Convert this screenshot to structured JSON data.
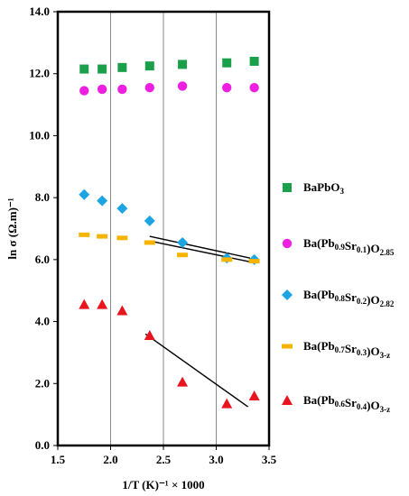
{
  "chart_data": {
    "type": "scatter",
    "xlabel": "1/T (K)⁻¹ × 1000",
    "ylabel": "ln σ (Ω.m)⁻¹",
    "xlim": [
      1.5,
      3.5
    ],
    "ylim": [
      0.0,
      14.0
    ],
    "x_ticks": [
      "1.5",
      "2.0",
      "2.5",
      "3.0",
      "3.5"
    ],
    "y_ticks": [
      "0.0",
      "2.0",
      "4.0",
      "6.0",
      "8.0",
      "10.0",
      "12.0",
      "14.0"
    ],
    "grid": "vertical",
    "legend_position": "right",
    "series": [
      {
        "name": "BaPbO3",
        "label_parts": [
          [
            "BaPbO",
            ""
          ],
          [
            "3",
            "sub"
          ]
        ],
        "marker": "square",
        "color": "#1aa04a",
        "x": [
          1.75,
          1.92,
          2.11,
          2.37,
          2.68,
          3.1,
          3.36
        ],
        "y": [
          12.15,
          12.15,
          12.2,
          12.25,
          12.3,
          12.35,
          12.4
        ]
      },
      {
        "name": "Ba(Pb0.9Sr0.1)O2.85",
        "label_parts": [
          [
            "Ba(Pb",
            ""
          ],
          [
            "0.9",
            "sub"
          ],
          [
            "Sr",
            ""
          ],
          [
            "0.1",
            "sub"
          ],
          [
            ")O",
            ""
          ],
          [
            "2.85",
            "sub"
          ]
        ],
        "marker": "circle",
        "color": "#ee1fe0",
        "x": [
          1.75,
          1.92,
          2.11,
          2.37,
          2.68,
          3.1,
          3.36
        ],
        "y": [
          11.45,
          11.5,
          11.5,
          11.55,
          11.6,
          11.55,
          11.55
        ]
      },
      {
        "name": "Ba(Pb0.8Sr0.2)O2.82",
        "label_parts": [
          [
            "Ba(Pb",
            ""
          ],
          [
            "0.8",
            "sub"
          ],
          [
            "Sr",
            ""
          ],
          [
            "0.2",
            "sub"
          ],
          [
            ")O",
            ""
          ],
          [
            "2.82",
            "sub"
          ]
        ],
        "marker": "diamond",
        "color": "#1ca4e3",
        "x": [
          1.75,
          1.92,
          2.11,
          2.37,
          2.68,
          3.1,
          3.36
        ],
        "y": [
          8.1,
          7.9,
          7.65,
          7.25,
          6.55,
          6.05,
          6.0
        ]
      },
      {
        "name": "Ba(Pb0.7Sr0.3)O3-z",
        "label_parts": [
          [
            "Ba(Pb",
            ""
          ],
          [
            "0.7",
            "sub"
          ],
          [
            "Sr",
            ""
          ],
          [
            "0.3",
            "sub"
          ],
          [
            ")O",
            ""
          ],
          [
            "3-z",
            "sub"
          ]
        ],
        "marker": "dash",
        "color": "#f5b400",
        "x": [
          1.75,
          1.92,
          2.11,
          2.37,
          2.68,
          3.1,
          3.36
        ],
        "y": [
          6.8,
          6.75,
          6.7,
          6.55,
          6.15,
          6.0,
          5.95
        ]
      },
      {
        "name": "Ba(Pb0.6Sr0.4)O3-z",
        "label_parts": [
          [
            "Ba(Pb",
            ""
          ],
          [
            "0.6",
            "sub"
          ],
          [
            "Sr",
            ""
          ],
          [
            "0.4",
            "sub"
          ],
          [
            ")O",
            ""
          ],
          [
            "3-z",
            "sub"
          ]
        ],
        "marker": "triangle",
        "color": "#e8141e",
        "x": [
          1.75,
          1.92,
          2.11,
          2.37,
          2.68,
          3.1,
          3.36
        ],
        "y": [
          4.55,
          4.55,
          4.35,
          3.55,
          2.05,
          1.35,
          1.6
        ]
      }
    ],
    "trend_lines": [
      {
        "x": [
          2.37,
          3.32
        ],
        "y": [
          6.75,
          6.05
        ]
      },
      {
        "x": [
          2.37,
          3.36
        ],
        "y": [
          6.6,
          5.9
        ]
      },
      {
        "x": [
          2.33,
          3.3
        ],
        "y": [
          3.6,
          1.25
        ]
      }
    ]
  }
}
